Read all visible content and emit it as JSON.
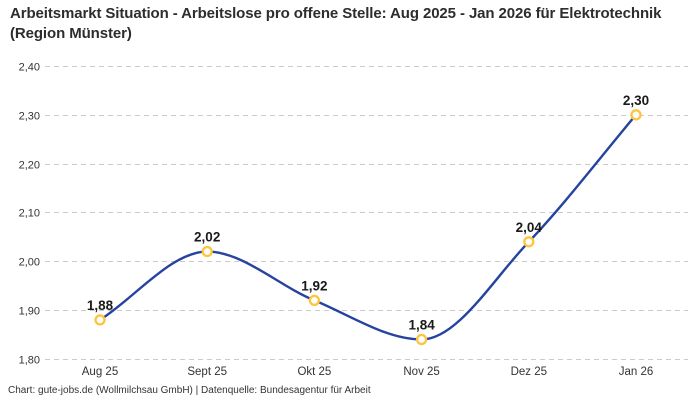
{
  "header": {
    "title": "Arbeitsmarkt Situation - Arbeitslose pro offene Stelle: Aug 2025 - Jan 2026 für Elektrotechnik (Region Münster)"
  },
  "footer": {
    "text": "Chart: gute-jobs.de (Wollmilchsau GmbH) | Datenquelle: Bundesagentur für Arbeit"
  },
  "chart_data": {
    "type": "line",
    "title": "Arbeitsmarkt Situation - Arbeitslose pro offene Stelle: Aug 2025 - Jan 2026 für Elektrotechnik (Region Münster)",
    "categories": [
      "Aug 25",
      "Sept 25",
      "Okt 25",
      "Nov 25",
      "Dez 25",
      "Jan 26"
    ],
    "values": [
      1.88,
      2.02,
      1.92,
      1.84,
      2.04,
      2.3
    ],
    "value_labels": [
      "1,88",
      "2,02",
      "1,92",
      "1,84",
      "2,04",
      "2,30"
    ],
    "xlabel": "",
    "ylabel": "",
    "ylim": [
      1.8,
      2.4
    ],
    "yticks": [
      1.8,
      1.9,
      2.0,
      2.1,
      2.2,
      2.3,
      2.4
    ],
    "ytick_labels": [
      "1,80",
      "1,90",
      "2,00",
      "2,10",
      "2,20",
      "2,30",
      "2,40"
    ],
    "grid": "horizontal-dashed",
    "legend": "none",
    "curve": "smooth-monotone",
    "line_color": "#2643A0",
    "marker_shape": "open-circle",
    "marker_stroke": "#FFC43B",
    "marker_fill": "#FFFFFF",
    "grid_color": "#CBCBCB",
    "value_label_color": "#1A1A1A",
    "axis_text_color": "#333333"
  }
}
